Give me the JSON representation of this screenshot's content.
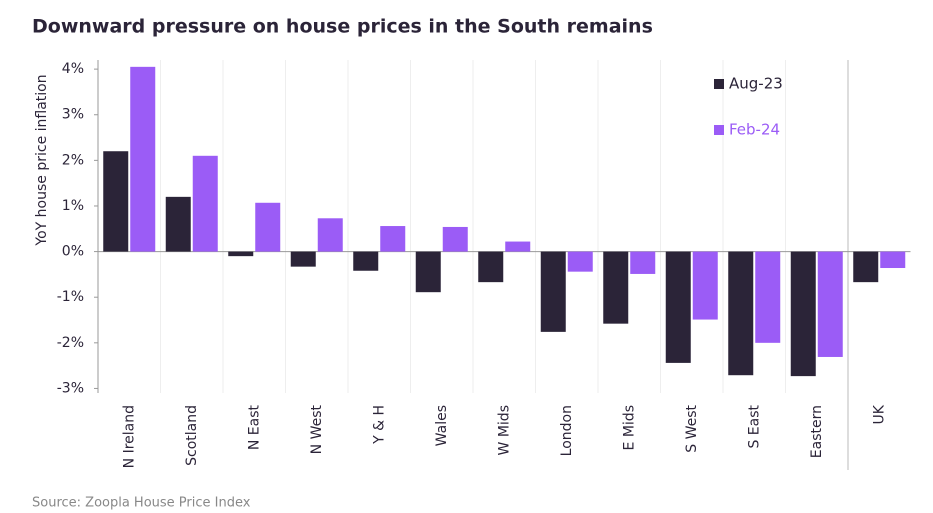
{
  "chart_data": {
    "type": "bar",
    "title": "Downward pressure on house prices in the South remains",
    "y_label": "YoY house price inflation",
    "source": "Source: Zoopla House Price Index",
    "categories": [
      "N Ireland",
      "Scotland",
      "N East",
      "N West",
      "Y & H",
      "Wales",
      "W Mids",
      "London",
      "E Mids",
      "S West",
      "S East",
      "Eastern",
      "UK"
    ],
    "series": [
      {
        "name": "Aug-23",
        "color": "#2b2438",
        "values": [
          2.2,
          1.2,
          -0.1,
          -0.33,
          -0.42,
          -0.89,
          -0.67,
          -1.76,
          -1.58,
          -2.44,
          -2.71,
          -2.73,
          -0.67
        ]
      },
      {
        "name": "Feb-24",
        "color": "#9b5cf6",
        "values": [
          4.05,
          2.1,
          1.07,
          0.73,
          0.56,
          0.54,
          0.22,
          -0.44,
          -0.49,
          -1.49,
          -2.0,
          -2.31,
          -0.36
        ]
      }
    ],
    "ylim": [
      -3.1,
      4.2
    ],
    "yticks": [
      {
        "value": 4,
        "label": "4%"
      },
      {
        "value": 3,
        "label": "3%"
      },
      {
        "value": 2,
        "label": "2%"
      },
      {
        "value": 1,
        "label": "1%"
      },
      {
        "value": 0,
        "label": "0%"
      },
      {
        "value": -1,
        "label": "-1%"
      },
      {
        "value": -2,
        "label": "-2%"
      },
      {
        "value": -3,
        "label": "-3%"
      }
    ]
  }
}
